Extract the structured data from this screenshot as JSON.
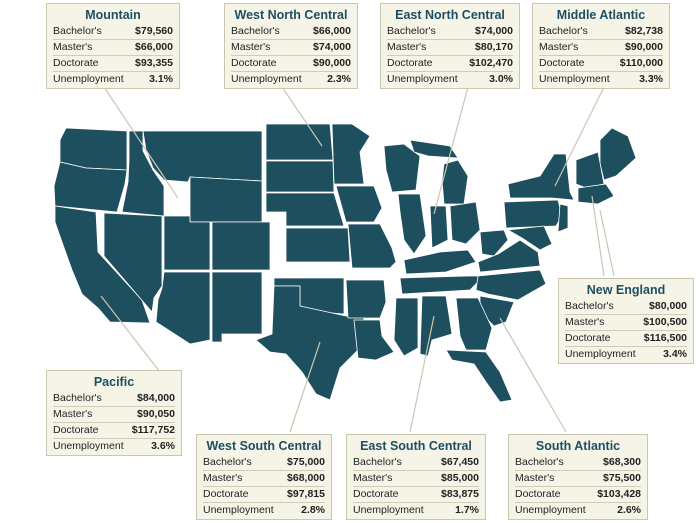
{
  "colors": {
    "map_fill": "#1d4f5f",
    "card_background": "#f5f4e6",
    "title_color": "#1d4f63"
  },
  "regions": [
    {
      "id": "mountain",
      "title": "Mountain",
      "rows": [
        {
          "label": "Bachelor's",
          "value": "$79,560"
        },
        {
          "label": "Master's",
          "value": "$66,000"
        },
        {
          "label": "Doctorate",
          "value": "$93,355"
        },
        {
          "label": "Unemployment",
          "value": "3.1%"
        }
      ]
    },
    {
      "id": "west-north-central",
      "title": "West North Central",
      "rows": [
        {
          "label": "Bachelor's",
          "value": "$66,000"
        },
        {
          "label": "Master's",
          "value": "$74,000"
        },
        {
          "label": "Doctorate",
          "value": "$90,000"
        },
        {
          "label": "Unemployment",
          "value": "2.3%"
        }
      ]
    },
    {
      "id": "east-north-central",
      "title": "East North Central",
      "rows": [
        {
          "label": "Bachelor's",
          "value": "$74,000"
        },
        {
          "label": "Master's",
          "value": "$80,170"
        },
        {
          "label": "Doctorate",
          "value": "$102,470"
        },
        {
          "label": "Unemployment",
          "value": "3.0%"
        }
      ]
    },
    {
      "id": "middle-atlantic",
      "title": "Middle Atlantic",
      "rows": [
        {
          "label": "Bachelor's",
          "value": "$82,738"
        },
        {
          "label": "Master's",
          "value": "$90,000"
        },
        {
          "label": "Doctorate",
          "value": "$110,000"
        },
        {
          "label": "Unemployment",
          "value": "3.3%"
        }
      ]
    },
    {
      "id": "new-england",
      "title": "New England",
      "rows": [
        {
          "label": "Bachelor's",
          "value": "$80,000"
        },
        {
          "label": "Master's",
          "value": "$100,500"
        },
        {
          "label": "Doctorate",
          "value": "$116,500"
        },
        {
          "label": "Unemployment",
          "value": "3.4%"
        }
      ]
    },
    {
      "id": "pacific",
      "title": "Pacific",
      "rows": [
        {
          "label": "Bachelor's",
          "value": "$84,000"
        },
        {
          "label": "Master's",
          "value": "$90,050"
        },
        {
          "label": "Doctorate",
          "value": "$117,752"
        },
        {
          "label": "Unemployment",
          "value": "3.6%"
        }
      ]
    },
    {
      "id": "west-south-central",
      "title": "West South Central",
      "rows": [
        {
          "label": "Bachelor's",
          "value": "$75,000"
        },
        {
          "label": "Master's",
          "value": "$68,000"
        },
        {
          "label": "Doctorate",
          "value": "$97,815"
        },
        {
          "label": "Unemployment",
          "value": "2.8%"
        }
      ]
    },
    {
      "id": "east-south-central",
      "title": "East South Central",
      "rows": [
        {
          "label": "Bachelor's",
          "value": "$67,450"
        },
        {
          "label": "Master's",
          "value": "$85,000"
        },
        {
          "label": "Doctorate",
          "value": "$83,875"
        },
        {
          "label": "Unemployment",
          "value": "1.7%"
        }
      ]
    },
    {
      "id": "south-atlantic",
      "title": "South Atlantic",
      "rows": [
        {
          "label": "Bachelor's",
          "value": "$68,300"
        },
        {
          "label": "Master's",
          "value": "$75,500"
        },
        {
          "label": "Doctorate",
          "value": "$103,428"
        },
        {
          "label": "Unemployment",
          "value": "2.6%"
        }
      ]
    }
  ]
}
